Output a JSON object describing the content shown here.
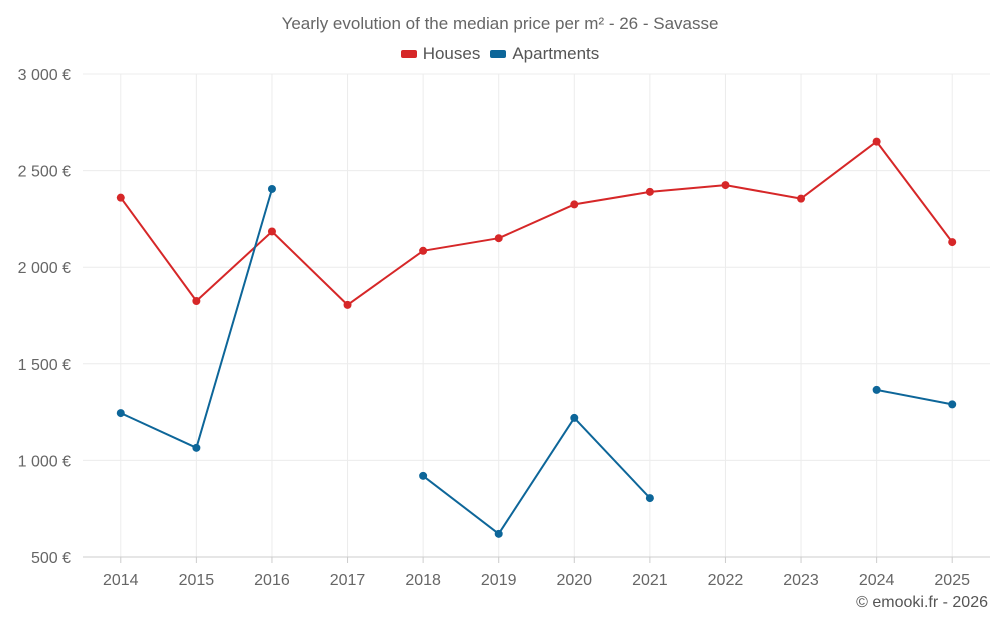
{
  "chart_data": {
    "type": "line",
    "title": "Yearly evolution of the median price per m² - 26 - Savasse",
    "xlabel": "",
    "ylabel": "",
    "categories": [
      "2014",
      "2015",
      "2016",
      "2017",
      "2018",
      "2019",
      "2020",
      "2021",
      "2022",
      "2023",
      "2024",
      "2025"
    ],
    "ylim": [
      500,
      3000
    ],
    "yticks": [
      500,
      1000,
      1500,
      2000,
      2500,
      3000
    ],
    "ytick_labels": [
      "500 €",
      "1 000 €",
      "1 500 €",
      "2 000 €",
      "2 500 €",
      "3 000 €"
    ],
    "grid": true,
    "legend_position": "top-center",
    "series": [
      {
        "name": "Houses",
        "color": "#d62728",
        "values": [
          2360,
          1825,
          2185,
          1805,
          2085,
          2150,
          2325,
          2390,
          2425,
          2355,
          2650,
          2130
        ]
      },
      {
        "name": "Apartments",
        "color": "#0d6699",
        "values": [
          1245,
          1065,
          2405,
          null,
          920,
          620,
          1220,
          805,
          null,
          null,
          1365,
          1290
        ]
      }
    ]
  },
  "credit": "© emooki.fr - 2026"
}
